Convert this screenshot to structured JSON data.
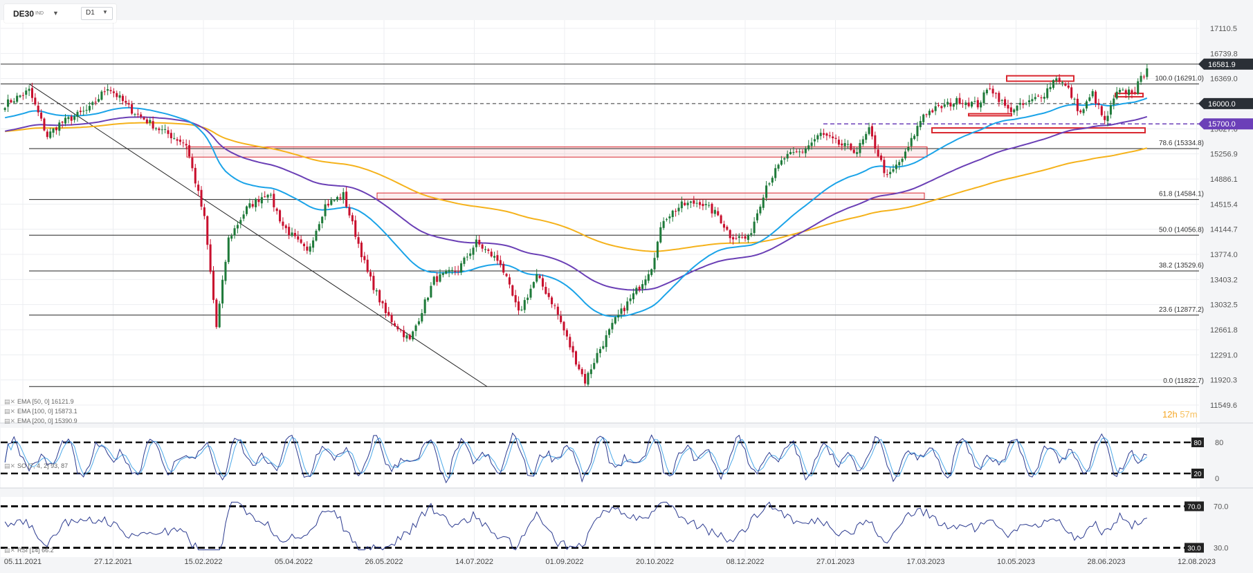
{
  "toolbar": {
    "symbol": "DE30",
    "symbol_suffix": "IND",
    "timeframe": "D1"
  },
  "countdown": {
    "hours": "12",
    "hours_unit": "h",
    "minutes": "57",
    "minutes_unit": "m"
  },
  "indicators": {
    "ema50": "EMA [50, 0]  16121.9",
    "ema100": "EMA [100, 0]  15873.1",
    "ema200": "EMA [200, 0]  15390.9",
    "stoch": "SO [7, 4, 2]  93, 87",
    "rsi": "RSI [14]  66.2"
  },
  "colors": {
    "bull": "#1f7a3a",
    "bear": "#c8102e",
    "ema50": "#1aa3e8",
    "ema100": "#6a3fb5",
    "ema200": "#f5b21b",
    "osc": "#2b3a8f",
    "osc2": "#4aa8e8",
    "box": "#d9262e",
    "badge_price": "#2a2f36",
    "badge_purple": "#6b3fb8"
  },
  "chart_data": {
    "type": "candlestick",
    "title": "",
    "y_axis": {
      "min": 11549.6,
      "max": 17110.5,
      "ticks": [
        "17110.5",
        "16739.8",
        "16369.0",
        "15998.3",
        "15627.6",
        "15256.9",
        "14886.1",
        "14515.4",
        "14144.7",
        "13774.0",
        "13403.2",
        "13032.5",
        "12661.8",
        "12291.0",
        "11920.3",
        "11549.6"
      ]
    },
    "x_axis": {
      "ticks": [
        "05.11.2021",
        "27.12.2021",
        "15.02.2022",
        "05.04.2022",
        "26.05.2022",
        "14.07.2022",
        "01.09.2022",
        "20.10.2022",
        "08.12.2022",
        "27.01.2023",
        "17.03.2023",
        "10.05.2023",
        "28.06.2023",
        "12.08.2023"
      ]
    },
    "current_price": "16581.9",
    "fib_levels": [
      {
        "label": "100.0 (16291.0)",
        "value": 16291.0
      },
      {
        "label": "78.6 (15334.8)",
        "value": 15334.8
      },
      {
        "label": "61.8 (14584.1)",
        "value": 14584.1
      },
      {
        "label": "50.0 (14056.8)",
        "value": 14056.8
      },
      {
        "label": "38.2 (13529.6)",
        "value": 13529.6
      },
      {
        "label": "23.6 (12877.2)",
        "value": 12877.2
      },
      {
        "label": "0.0 (11822.7)",
        "value": 11822.7
      }
    ],
    "level_badges": [
      {
        "label": "16000.0",
        "value": 16000.0
      },
      {
        "label": "15700.0",
        "value": 15700.0
      }
    ],
    "anchors": [
      {
        "i": 0,
        "p": 15990
      },
      {
        "i": 8,
        "p": 16190
      },
      {
        "i": 14,
        "p": 15520
      },
      {
        "i": 18,
        "p": 15700
      },
      {
        "i": 28,
        "p": 15920
      },
      {
        "i": 34,
        "p": 16250
      },
      {
        "i": 42,
        "p": 15900
      },
      {
        "i": 50,
        "p": 15650
      },
      {
        "i": 60,
        "p": 15400
      },
      {
        "i": 66,
        "p": 14300
      },
      {
        "i": 70,
        "p": 12700
      },
      {
        "i": 74,
        "p": 14000
      },
      {
        "i": 80,
        "p": 14450
      },
      {
        "i": 87,
        "p": 14700
      },
      {
        "i": 92,
        "p": 14200
      },
      {
        "i": 100,
        "p": 13800
      },
      {
        "i": 106,
        "p": 14500
      },
      {
        "i": 112,
        "p": 14650
      },
      {
        "i": 120,
        "p": 13500
      },
      {
        "i": 126,
        "p": 12900
      },
      {
        "i": 134,
        "p": 12500
      },
      {
        "i": 142,
        "p": 13400
      },
      {
        "i": 150,
        "p": 13550
      },
      {
        "i": 156,
        "p": 13950
      },
      {
        "i": 164,
        "p": 13650
      },
      {
        "i": 170,
        "p": 12900
      },
      {
        "i": 176,
        "p": 13450
      },
      {
        "i": 182,
        "p": 13000
      },
      {
        "i": 188,
        "p": 12300
      },
      {
        "i": 192,
        "p": 11900
      },
      {
        "i": 196,
        "p": 12300
      },
      {
        "i": 202,
        "p": 12800
      },
      {
        "i": 210,
        "p": 13300
      },
      {
        "i": 214,
        "p": 13600
      },
      {
        "i": 218,
        "p": 14300
      },
      {
        "i": 224,
        "p": 14500
      },
      {
        "i": 230,
        "p": 14550
      },
      {
        "i": 236,
        "p": 14350
      },
      {
        "i": 240,
        "p": 14050
      },
      {
        "i": 246,
        "p": 14000
      },
      {
        "i": 252,
        "p": 14800
      },
      {
        "i": 258,
        "p": 15200
      },
      {
        "i": 264,
        "p": 15300
      },
      {
        "i": 270,
        "p": 15550
      },
      {
        "i": 276,
        "p": 15400
      },
      {
        "i": 282,
        "p": 15300
      },
      {
        "i": 286,
        "p": 15600
      },
      {
        "i": 292,
        "p": 14900
      },
      {
        "i": 298,
        "p": 15250
      },
      {
        "i": 304,
        "p": 15850
      },
      {
        "i": 310,
        "p": 15950
      },
      {
        "i": 316,
        "p": 16050
      },
      {
        "i": 322,
        "p": 15980
      },
      {
        "i": 326,
        "p": 16250
      },
      {
        "i": 332,
        "p": 15900
      },
      {
        "i": 338,
        "p": 15990
      },
      {
        "i": 344,
        "p": 16150
      },
      {
        "i": 348,
        "p": 16400
      },
      {
        "i": 352,
        "p": 16200
      },
      {
        "i": 356,
        "p": 15850
      },
      {
        "i": 360,
        "p": 16150
      },
      {
        "i": 364,
        "p": 15720
      },
      {
        "i": 368,
        "p": 16150
      },
      {
        "i": 374,
        "p": 16200
      },
      {
        "i": 378,
        "p": 16520
      }
    ]
  }
}
